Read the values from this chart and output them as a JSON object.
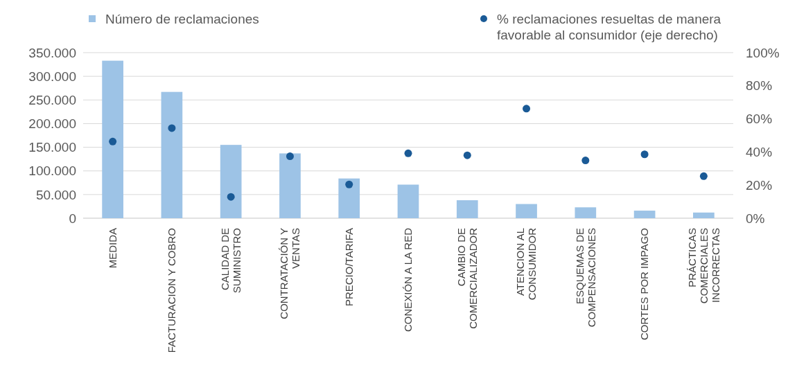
{
  "chart_data": {
    "type": "bar",
    "categories": [
      "MEDIDA",
      "FACTURACION Y COBRO",
      "CALIDAD DE SUMINISTRO",
      "CONTRATACIÓN Y VENTAS",
      "PRECIO/TARIFA",
      "CONEXIÓN A LA RED",
      "CAMBIO DE COMERCIALIZADOR",
      "ATENCION AL CONSUMIDOR",
      "ESQUEMAS DE COMPENSACIONES",
      "CORTES POR IMPAGO",
      "PRÁCTICAS COMERCIALES INCORRECTAS"
    ],
    "series": [
      {
        "name": "Número de reclamaciones",
        "color": "#9dc3e6",
        "values": [
          333000,
          267000,
          155000,
          137000,
          84000,
          71000,
          38000,
          30000,
          23000,
          16000,
          12000
        ]
      },
      {
        "name": "% reclamaciones resueltas de manera favorable al consumidor (eje derecho)",
        "type": "scatter",
        "axis": "y2",
        "color": "#1a5a96",
        "marker": "circle",
        "values": [
          46.3,
          54.4,
          12.9,
          37.4,
          20.4,
          39.2,
          38,
          66.2,
          34.9,
          38.6,
          25.4
        ]
      }
    ],
    "ylim": [
      0,
      350000
    ],
    "yticks": [
      {
        "value": 0,
        "label": "0"
      },
      {
        "value": 50000,
        "label": "50.000"
      },
      {
        "value": 100000,
        "label": "100.000"
      },
      {
        "value": 150000,
        "label": "150.000"
      },
      {
        "value": 200000,
        "label": "200.000"
      },
      {
        "value": 250000,
        "label": "250.000"
      },
      {
        "value": 300000,
        "label": "300.000"
      },
      {
        "value": 350000,
        "label": "350.000"
      }
    ],
    "y2lim": [
      0,
      100
    ],
    "y2ticks": [
      {
        "value": 0,
        "label": "0%"
      },
      {
        "value": 20,
        "label": "20%"
      },
      {
        "value": 40,
        "label": "40%"
      },
      {
        "value": 60,
        "label": "60%"
      },
      {
        "value": 80,
        "label": "80%"
      },
      {
        "value": 100,
        "label": "100%"
      }
    ],
    "grid": "y",
    "legend": "top"
  }
}
